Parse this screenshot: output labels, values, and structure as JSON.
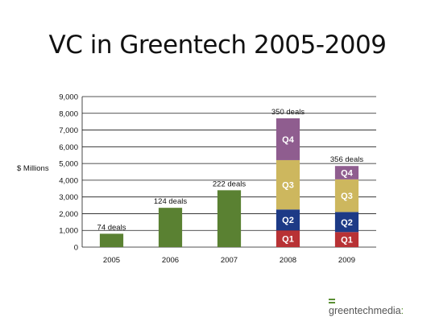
{
  "title": "VC in Greentech 2005-2009",
  "logo": {
    "part1": "greentech",
    "part2": "media",
    "tail": ":"
  },
  "colors": {
    "bar": "#5a8132",
    "Q1": "#b83235",
    "Q2": "#1d3a86",
    "Q3": "#cdb75e",
    "Q4": "#8f5d8f",
    "grid": "#1a1a1a"
  },
  "chart_data": {
    "type": "bar",
    "ylabel": "$ Millions",
    "ylim": [
      0,
      9000
    ],
    "yticks": [
      0,
      1000,
      2000,
      3000,
      4000,
      5000,
      6000,
      7000,
      8000,
      9000
    ],
    "ytick_labels": [
      "0",
      "1,000",
      "2,000",
      "3,000",
      "4,000",
      "5,000",
      "6,000",
      "7,000",
      "8,000",
      "9,000"
    ],
    "categories": [
      "2005",
      "2006",
      "2007",
      "2008",
      "2009"
    ],
    "values": [
      800,
      2350,
      3400,
      7700,
      4850
    ],
    "stacked_quarters": [
      null,
      null,
      null,
      [
        {
          "name": "Q1",
          "value": 1000
        },
        {
          "name": "Q2",
          "value": 1250
        },
        {
          "name": "Q3",
          "value": 2950
        },
        {
          "name": "Q4",
          "value": 2500
        }
      ],
      [
        {
          "name": "Q1",
          "value": 900
        },
        {
          "name": "Q2",
          "value": 1200
        },
        {
          "name": "Q3",
          "value": 1950
        },
        {
          "name": "Q4",
          "value": 800
        }
      ]
    ],
    "data_labels": [
      "74 deals",
      "124 deals",
      "222 deals",
      "350 deals",
      "356 deals"
    ],
    "grid": true,
    "legend": "none"
  }
}
